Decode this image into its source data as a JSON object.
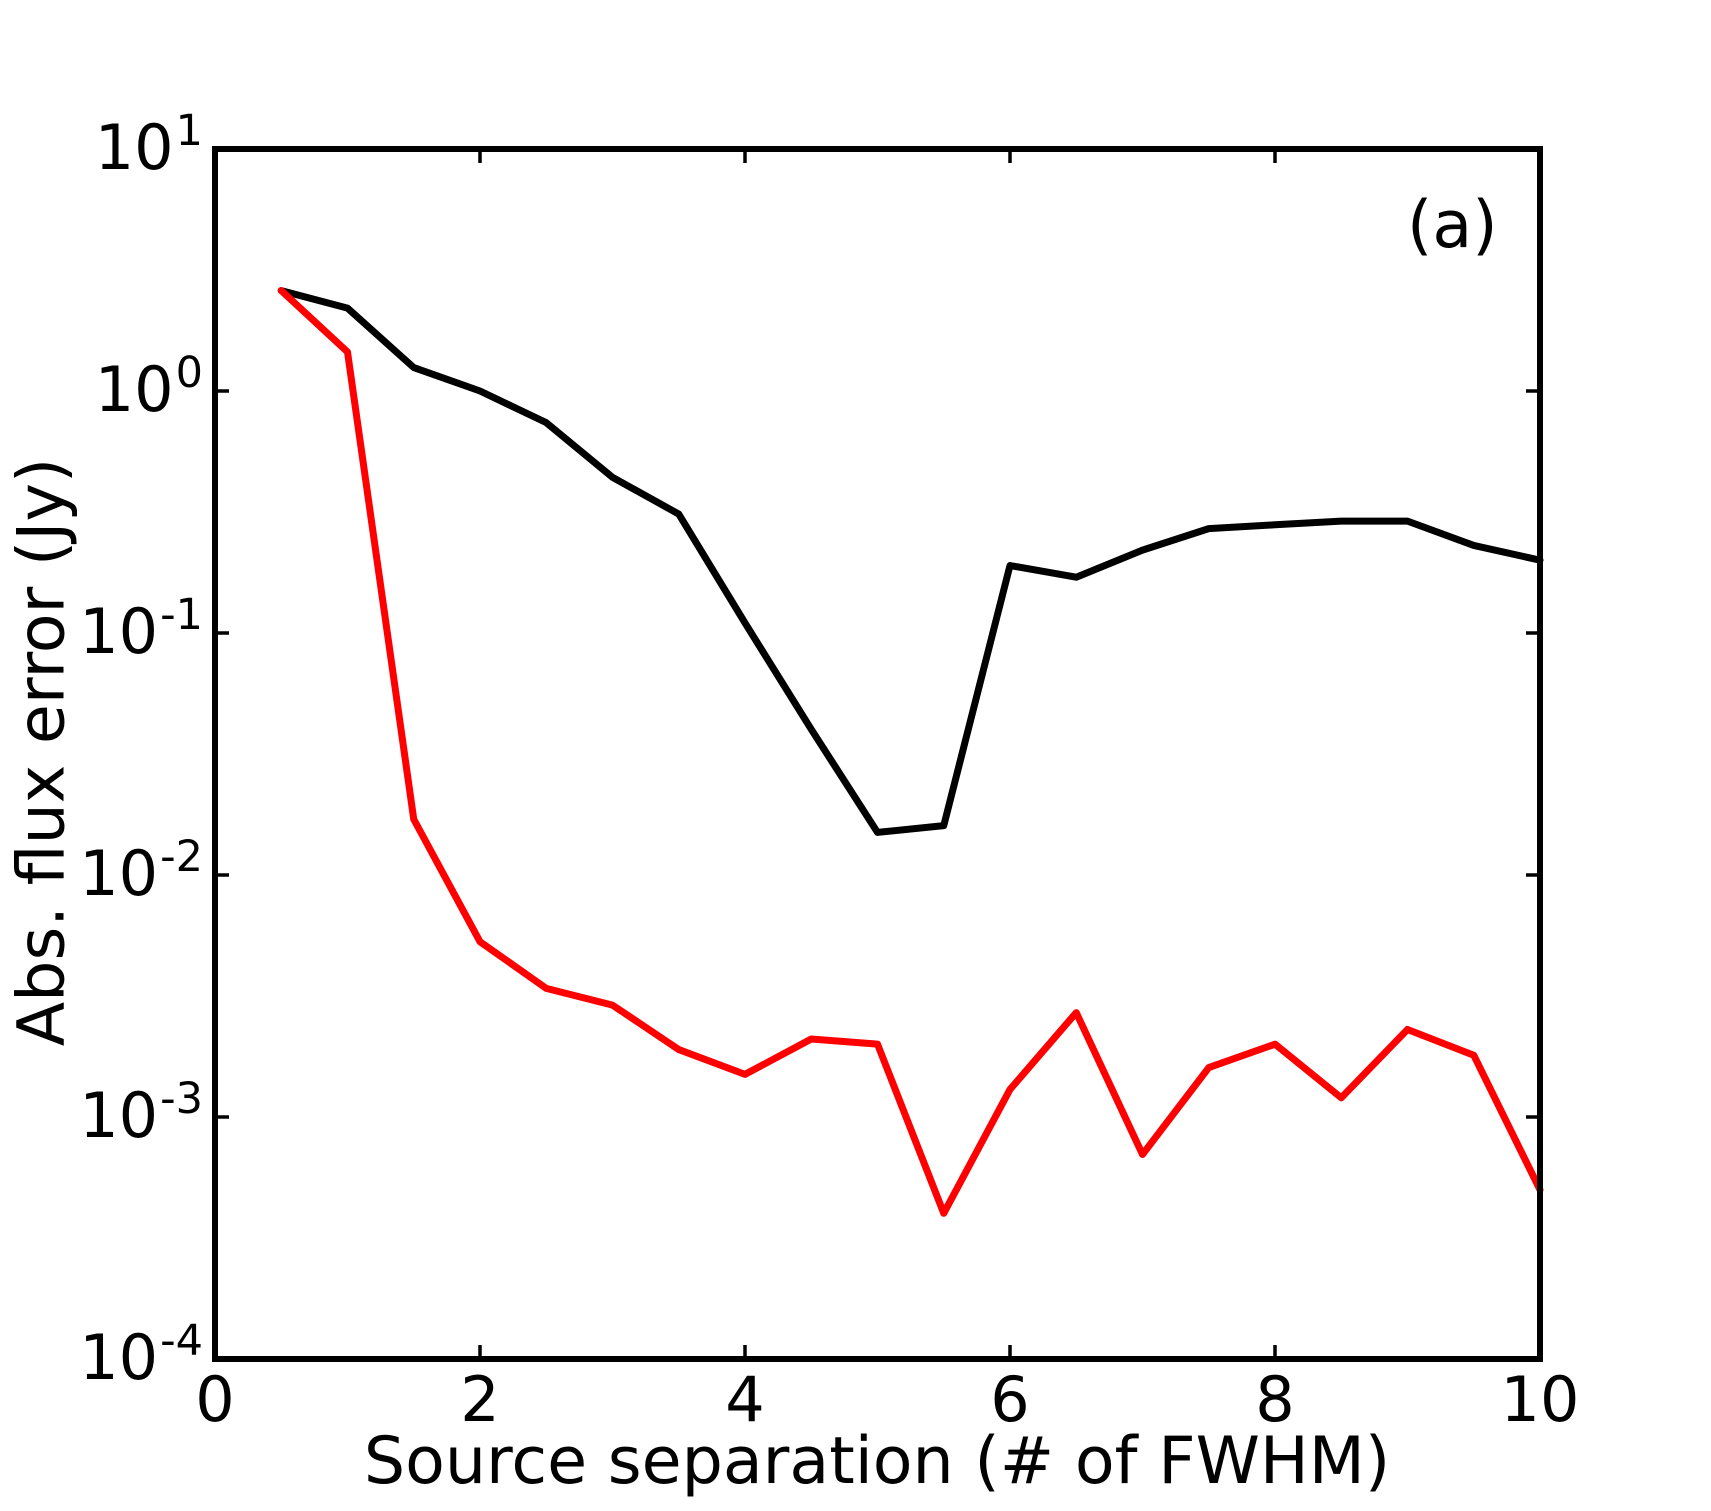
{
  "figure": {
    "annotation": "(a)",
    "background": "#ffffff"
  },
  "axes": {
    "xlabel": "Source separation (# of FWHM)",
    "ylabel": "Abs. flux error (Jy)",
    "frame_color": "#000000",
    "xlim": [
      0,
      10
    ],
    "ylim_exp": [
      -4,
      1
    ],
    "x_ticks": [
      {
        "value": 0,
        "label": "0"
      },
      {
        "value": 2,
        "label": "2"
      },
      {
        "value": 4,
        "label": "4"
      },
      {
        "value": 6,
        "label": "6"
      },
      {
        "value": 8,
        "label": "8"
      },
      {
        "value": 10,
        "label": "10"
      }
    ],
    "y_ticks": [
      {
        "exp": 1,
        "base": "10",
        "exp_label": "1"
      },
      {
        "exp": 0,
        "base": "10",
        "exp_label": "0"
      },
      {
        "exp": -1,
        "base": "10",
        "exp_label": "-1"
      },
      {
        "exp": -2,
        "base": "10",
        "exp_label": "-2"
      },
      {
        "exp": -3,
        "base": "10",
        "exp_label": "-3"
      },
      {
        "exp": -4,
        "base": "10",
        "exp_label": "-4"
      }
    ]
  },
  "chart_data": {
    "type": "line",
    "title": "",
    "xlabel": "Source separation (# of FWHM)",
    "ylabel": "Abs. flux error (Jy)",
    "x_axis_scale": "linear",
    "y_axis_scale": "log",
    "xlim": [
      0,
      10
    ],
    "ylim": [
      0.0001,
      10
    ],
    "grid": false,
    "legend": "none",
    "annotation": "(a)",
    "x": [
      0.5,
      1.0,
      1.5,
      2.0,
      2.5,
      3.0,
      3.5,
      4.0,
      4.5,
      5.0,
      5.5,
      6.0,
      6.5,
      7.0,
      7.5,
      8.0,
      8.5,
      9.0,
      9.5,
      10.0
    ],
    "series": [
      {
        "name": "black-series",
        "color": "#000000",
        "values": [
          2.6,
          2.2,
          1.25,
          1.0,
          0.74,
          0.44,
          0.31,
          0.11,
          0.04,
          0.015,
          0.016,
          0.19,
          0.17,
          0.22,
          0.27,
          0.28,
          0.29,
          0.29,
          0.23,
          0.2
        ]
      },
      {
        "name": "red-series",
        "color": "#ff0000",
        "values": [
          2.6,
          1.45,
          0.017,
          0.0053,
          0.0034,
          0.0029,
          0.0019,
          0.0015,
          0.0021,
          0.002,
          0.0004,
          0.0013,
          0.0027,
          0.0007,
          0.0016,
          0.002,
          0.0012,
          0.0023,
          0.0018,
          0.0005
        ]
      }
    ]
  }
}
